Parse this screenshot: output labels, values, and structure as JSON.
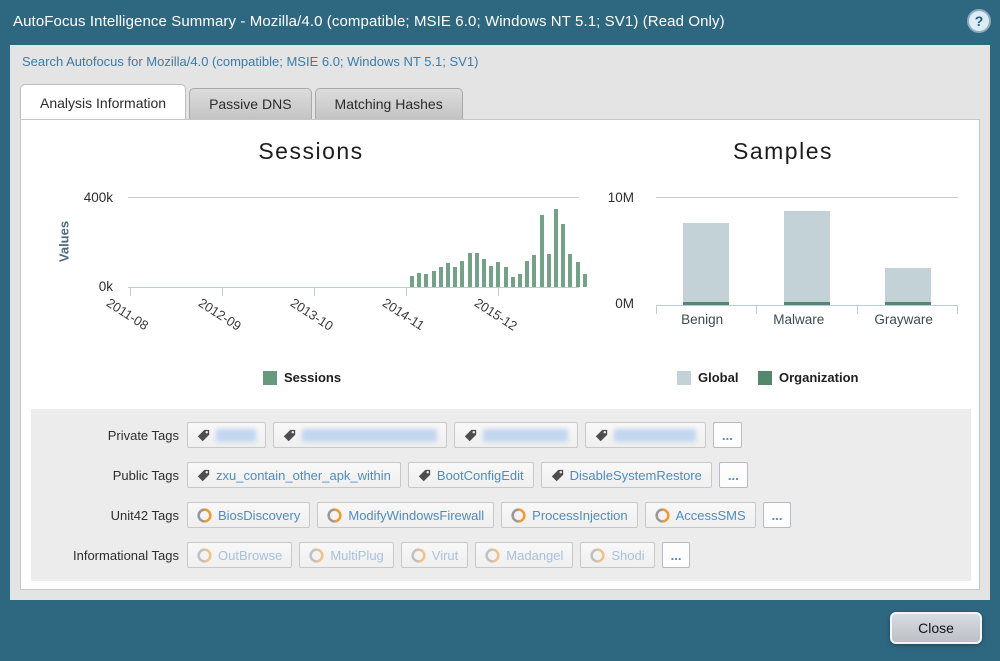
{
  "window": {
    "title": "AutoFocus Intelligence Summary - Mozilla/4.0 (compatible; MSIE 6.0; Windows NT 5.1; SV1) (Read Only)",
    "help_glyph": "?"
  },
  "search_link": "Search Autofocus for Mozilla/4.0 (compatible; MSIE 6.0; Windows NT 5.1; SV1)",
  "tabs": [
    {
      "label": "Analysis Information",
      "active": true
    },
    {
      "label": "Passive DNS",
      "active": false
    },
    {
      "label": "Matching Hashes",
      "active": false
    }
  ],
  "chart_data": [
    {
      "type": "bar",
      "title": "Sessions",
      "ylabel": "Values",
      "ytick_labels": [
        "0k",
        "400k"
      ],
      "ylim_k": [
        0,
        400
      ],
      "grid": "top-line-only",
      "legend": [
        "Sessions"
      ],
      "legend_position": "bottom",
      "xtick_labels": [
        "2011-08",
        "2012-09",
        "2013-10",
        "2014-11",
        "2015-12"
      ],
      "values_k": [
        50,
        65,
        58,
        72,
        88,
        110,
        92,
        118,
        155,
        155,
        125,
        95,
        112,
        90,
        45,
        57,
        118,
        142,
        322,
        150,
        352,
        285,
        148,
        112,
        58
      ]
    },
    {
      "type": "bar",
      "title": "Samples",
      "categories": [
        "Benign",
        "Malware",
        "Grayware"
      ],
      "ytick_labels": [
        "0M",
        "10M"
      ],
      "ylim_M": [
        0,
        10
      ],
      "grid": "top-line-only",
      "legend": [
        "Global",
        "Organization"
      ],
      "legend_position": "bottom",
      "series": [
        {
          "name": "Global",
          "values_M": [
            7.7,
            8.8,
            3.5
          ]
        },
        {
          "name": "Organization",
          "values_M": [
            0.2,
            0.2,
            0.2
          ]
        }
      ]
    }
  ],
  "tags": {
    "rows": [
      {
        "label": "Private Tags",
        "icon": "tag-icon",
        "redacted": true,
        "muted": false,
        "items": [],
        "redacted_widths": [
          40,
          135,
          85,
          82
        ],
        "more": "..."
      },
      {
        "label": "Public Tags",
        "icon": "tag-icon",
        "redacted": false,
        "muted": false,
        "items": [
          "zxu_contain_other_apk_within",
          "BootConfigEdit",
          "DisableSystemRestore"
        ],
        "more": "..."
      },
      {
        "label": "Unit42 Tags",
        "icon": "unit42-icon",
        "redacted": false,
        "muted": false,
        "items": [
          "BiosDiscovery",
          "ModifyWindowsFirewall",
          "ProcessInjection",
          "AccessSMS"
        ],
        "more": "..."
      },
      {
        "label": "Informational Tags",
        "icon": "unit42-icon",
        "redacted": false,
        "muted": true,
        "items": [
          "OutBrowse",
          "MultiPlug",
          "Virut",
          "Madangel",
          "Shodi"
        ],
        "more": "..."
      }
    ]
  },
  "footer": {
    "close_label": "Close"
  },
  "colors": {
    "titlebar_bg": "#2e6880",
    "content_bg": "#e4e4e4",
    "panel_bg": "#ffffff",
    "tags_panel_bg": "#ececec",
    "session_bar": "#74a288",
    "legend_sessions": "#67997e",
    "global_bar": "#c3d2d6",
    "organization_bar": "#54886e",
    "tag_text": "#4e8cc1",
    "muted_tag_text": "#a7c2dc"
  }
}
